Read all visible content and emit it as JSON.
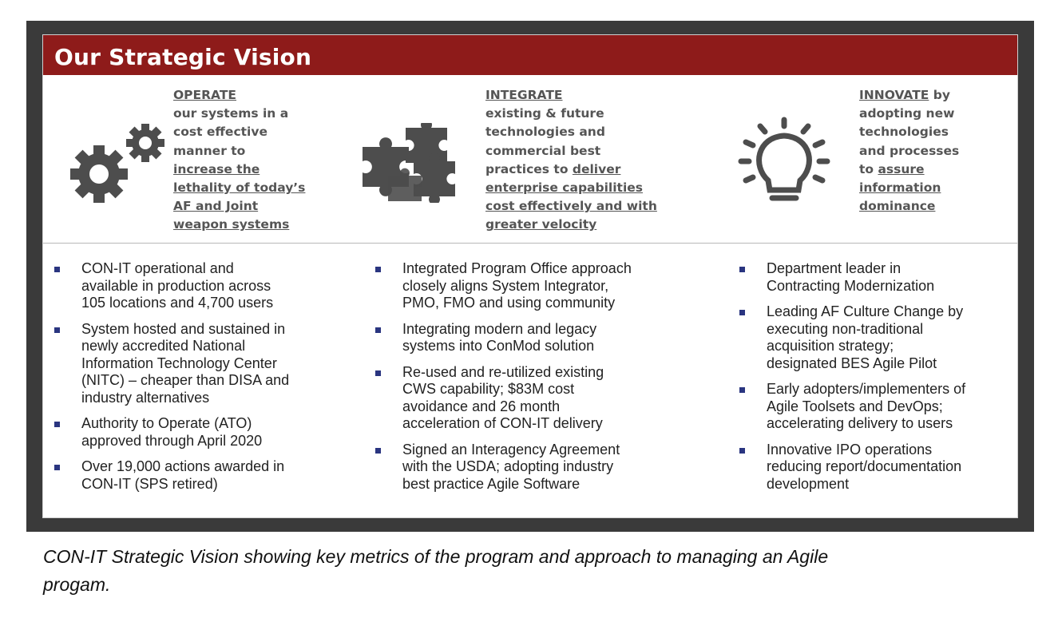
{
  "banner": {
    "title": "Our Strategic Vision"
  },
  "pillars": {
    "operate": {
      "icon": "gears-icon",
      "lines": [
        {
          "text": "OPERATE",
          "u": true
        },
        {
          "text": "our systems in a",
          "u": false
        },
        {
          "text": "cost effective",
          "u": false
        },
        {
          "text": "manner to",
          "u": false
        },
        {
          "text": "increase the",
          "u": true
        },
        {
          "text": "lethality of today’s",
          "u": true
        },
        {
          "text": "AF and Joint",
          "u": true
        },
        {
          "text": "weapon systems",
          "u": true
        }
      ]
    },
    "integrate": {
      "icon": "puzzle-pieces-icon",
      "lines": [
        [
          {
            "text": "INTEGRATE",
            "u": true
          }
        ],
        [
          {
            "text": "existing & future",
            "u": false
          }
        ],
        [
          {
            "text": "technologies and",
            "u": false
          }
        ],
        [
          {
            "text": "commercial best",
            "u": false
          }
        ],
        [
          {
            "text": "practices to ",
            "u": false
          },
          {
            "text": "deliver",
            "u": true
          }
        ],
        [
          {
            "text": "enterprise capabilities",
            "u": true
          }
        ],
        [
          {
            "text": "cost effectively and with",
            "u": true
          }
        ],
        [
          {
            "text": "greater velocity",
            "u": true
          }
        ]
      ]
    },
    "innovate": {
      "icon": "lightbulb-icon",
      "lines": [
        [
          {
            "text": "INNOVATE",
            "u": true
          },
          {
            "text": " by",
            "u": false
          }
        ],
        [
          {
            "text": "adopting new",
            "u": false
          }
        ],
        [
          {
            "text": "technologies",
            "u": false
          }
        ],
        [
          {
            "text": "and processes",
            "u": false
          }
        ],
        [
          {
            "text": "to ",
            "u": false
          },
          {
            "text": "assure",
            "u": true
          }
        ],
        [
          {
            "text": "information",
            "u": true
          }
        ],
        [
          {
            "text": "dominance",
            "u": true
          }
        ]
      ]
    }
  },
  "columns": [
    {
      "bullets": [
        [
          "CON-IT operational and",
          "available in production across",
          "105 locations and 4,700 users"
        ],
        [
          "System hosted and sustained in",
          "newly accredited National",
          "Information Technology Center",
          "(NITC) – cheaper than DISA and",
          "industry alternatives"
        ],
        [
          "Authority to Operate (ATO)",
          "approved through April 2020"
        ],
        [
          "Over 19,000 actions awarded in",
          "CON-IT (SPS retired)"
        ]
      ]
    },
    {
      "bullets": [
        [
          "Integrated Program Office approach",
          "closely aligns System Integrator,",
          "PMO, FMO and using community"
        ],
        [
          "Integrating modern and legacy",
          "systems into ConMod solution"
        ],
        [
          "Re-used and re-utilized existing",
          "CWS capability; $83M cost",
          "avoidance and 26 month",
          "acceleration of CON-IT delivery"
        ],
        [
          "Signed an Interagency Agreement",
          "with the USDA; adopting industry",
          "best practice Agile Software"
        ]
      ]
    },
    {
      "bullets": [
        [
          "Department leader in",
          "Contracting Modernization"
        ],
        [
          "Leading AF Culture Change by",
          "executing non-traditional",
          "acquisition strategy;",
          "designated BES Agile Pilot"
        ],
        [
          "Early adopters/implementers of",
          "Agile Toolsets and DevOps;",
          "accelerating delivery to users"
        ],
        [
          "Innovative IPO operations",
          "reducing report/documentation",
          "development"
        ]
      ]
    }
  ],
  "caption": {
    "line1": "CON-IT Strategic Vision showing key metrics of the program and approach to managing an Agile",
    "line2": "progam."
  },
  "colors": {
    "banner": "#8e1b1a",
    "bullet": "#2a3580",
    "icon": "#4d4d4d",
    "frame": "#3a3a3a"
  }
}
